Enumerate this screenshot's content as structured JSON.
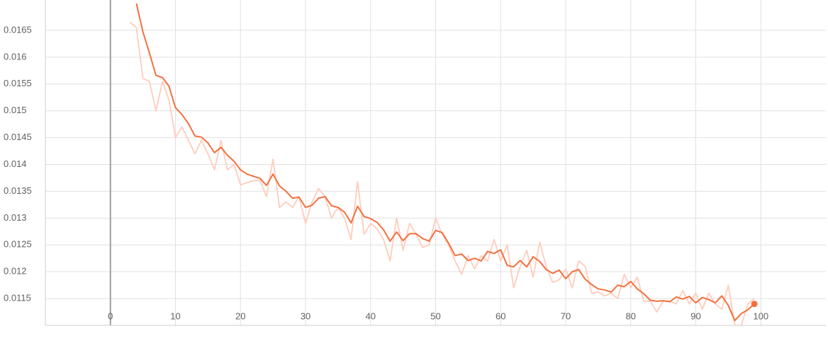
{
  "chart_data": {
    "type": "line",
    "x": [
      3,
      4,
      5,
      6,
      7,
      8,
      9,
      10,
      11,
      12,
      13,
      14,
      15,
      16,
      17,
      18,
      19,
      20,
      21,
      22,
      23,
      24,
      25,
      26,
      27,
      28,
      29,
      30,
      31,
      32,
      33,
      34,
      35,
      36,
      37,
      38,
      39,
      40,
      41,
      42,
      43,
      44,
      45,
      46,
      47,
      48,
      49,
      50,
      51,
      52,
      53,
      54,
      55,
      56,
      57,
      58,
      59,
      60,
      61,
      62,
      63,
      64,
      65,
      66,
      67,
      68,
      69,
      70,
      71,
      72,
      73,
      74,
      75,
      76,
      77,
      78,
      79,
      80,
      81,
      82,
      83,
      84,
      85,
      86,
      87,
      88,
      89,
      90,
      91,
      92,
      93,
      94,
      95,
      96,
      97,
      98,
      99
    ],
    "series": [
      {
        "color": "#ffccbc",
        "values": [
          0.01665,
          0.01655,
          0.0156,
          0.01555,
          0.015,
          0.01555,
          0.0152,
          0.0145,
          0.0147,
          0.01445,
          0.0142,
          0.01445,
          0.0142,
          0.0139,
          0.01445,
          0.0139,
          0.014,
          0.01362,
          0.01366,
          0.0137,
          0.0137,
          0.0134,
          0.0141,
          0.0132,
          0.0133,
          0.0132,
          0.0134,
          0.0129,
          0.0133,
          0.01355,
          0.0134,
          0.013,
          0.0132,
          0.013,
          0.0126,
          0.01368,
          0.0127,
          0.0129,
          0.0128,
          0.0126,
          0.0122,
          0.013,
          0.0124,
          0.0129,
          0.0127,
          0.01245,
          0.0125,
          0.013,
          0.0127,
          0.0125,
          0.0122,
          0.01195,
          0.0123,
          0.01205,
          0.0123,
          0.0122,
          0.0126,
          0.0122,
          0.0125,
          0.0117,
          0.0121,
          0.0124,
          0.0119,
          0.01255,
          0.0121,
          0.0118,
          0.01185,
          0.01205,
          0.0117,
          0.0122,
          0.0121,
          0.0116,
          0.01162,
          0.01155,
          0.0116,
          0.0115,
          0.01195,
          0.0117,
          0.0119,
          0.01145,
          0.01145,
          0.01125,
          0.01145,
          0.01145,
          0.0114,
          0.01165,
          0.0114,
          0.0116,
          0.0113,
          0.0116,
          0.0114,
          0.0113,
          0.01175,
          0.011,
          0.011,
          0.0114,
          0.0115
        ]
      },
      {
        "color": "#f4703e",
        "values": [
          null,
          0.017,
          0.01647,
          0.01608,
          0.01566,
          0.01562,
          0.01546,
          0.01506,
          0.01493,
          0.01476,
          0.01453,
          0.01451,
          0.0144,
          0.01422,
          0.01432,
          0.01417,
          0.01406,
          0.0139,
          0.01382,
          0.01378,
          0.01374,
          0.01361,
          0.01382,
          0.0136,
          0.0135,
          0.01337,
          0.01339,
          0.0132,
          0.01324,
          0.01337,
          0.0134,
          0.01323,
          0.0132,
          0.01311,
          0.01291,
          0.01322,
          0.01303,
          0.01299,
          0.01292,
          0.01278,
          0.01257,
          0.01274,
          0.01258,
          0.01271,
          0.01271,
          0.01262,
          0.01257,
          0.01277,
          0.01273,
          0.01253,
          0.0123,
          0.01233,
          0.01221,
          0.01225,
          0.0122,
          0.01238,
          0.01234,
          0.01241,
          0.01212,
          0.01209,
          0.01221,
          0.01209,
          0.01228,
          0.01219,
          0.01204,
          0.01197,
          0.01203,
          0.01187,
          0.012,
          0.01204,
          0.01186,
          0.01176,
          0.01168,
          0.01166,
          0.01162,
          0.01175,
          0.01172,
          0.01182,
          0.01168,
          0.01159,
          0.01147,
          0.01145,
          0.01146,
          0.01144,
          0.01153,
          0.01149,
          0.01154,
          0.01142,
          0.01152,
          0.01148,
          0.01142,
          0.01155,
          0.01137,
          0.01109,
          0.01122,
          0.01129,
          0.0114
        ]
      }
    ],
    "xlim": [
      -10,
      110
    ],
    "xticks": [
      0,
      10,
      20,
      30,
      40,
      50,
      60,
      70,
      80,
      90,
      100
    ],
    "ylim": [
      0.011,
      0.017
    ],
    "yticks": [
      0.0115,
      0.012,
      0.0125,
      0.013,
      0.0135,
      0.014,
      0.0145,
      0.015,
      0.0155,
      0.016,
      0.0165
    ],
    "grid": true
  }
}
